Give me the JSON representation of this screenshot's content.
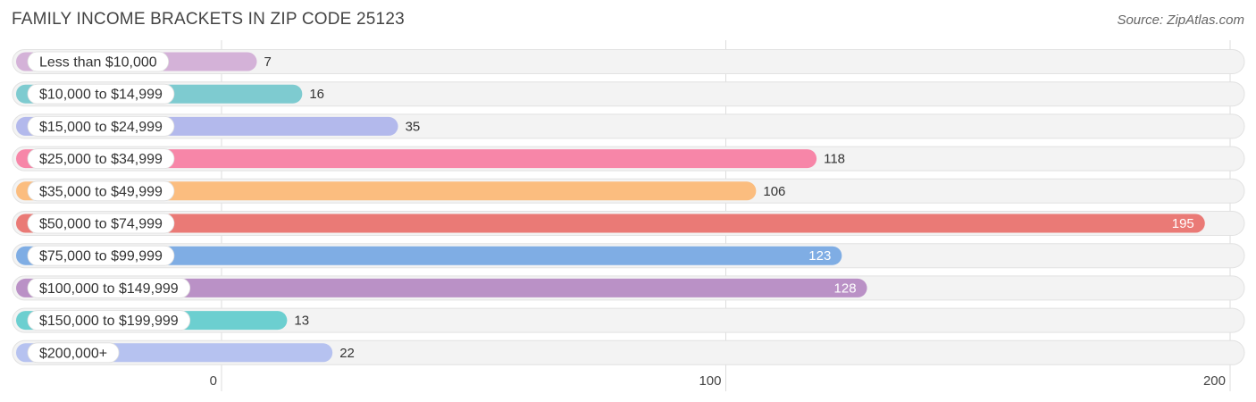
{
  "header": {
    "title": "FAMILY INCOME BRACKETS IN ZIP CODE 25123",
    "source": "Source: ZipAtlas.com"
  },
  "chart_data": {
    "type": "bar",
    "orientation": "horizontal",
    "categories": [
      "Less than $10,000",
      "$10,000 to $14,999",
      "$15,000 to $24,999",
      "$25,000 to $34,999",
      "$35,000 to $49,999",
      "$50,000 to $74,999",
      "$75,000 to $99,999",
      "$100,000 to $149,999",
      "$150,000 to $199,999",
      "$200,000+"
    ],
    "values": [
      7,
      16,
      35,
      118,
      106,
      195,
      123,
      128,
      13,
      22
    ],
    "colors": [
      "#d4b2d8",
      "#7ecbd0",
      "#b3b9ec",
      "#f786a8",
      "#fbbd7f",
      "#ea7a76",
      "#7fade4",
      "#ba91c6",
      "#6ccfd0",
      "#b6c2f0"
    ],
    "xlim": [
      0,
      200
    ],
    "xticks": [
      0,
      100,
      200
    ],
    "grid": true,
    "legend": "none"
  }
}
